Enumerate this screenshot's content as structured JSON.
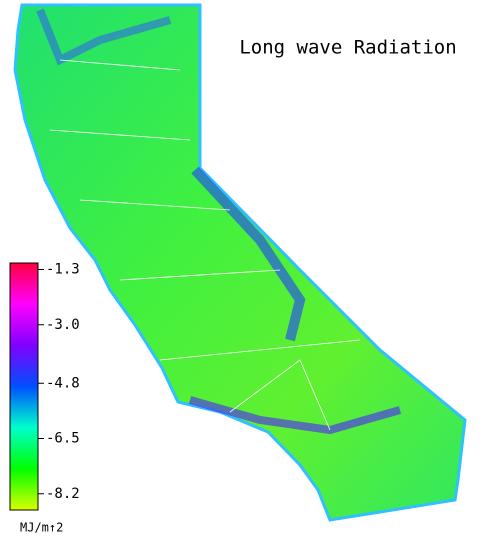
{
  "title": "Long wave Radiation",
  "colorbar": {
    "lim": [
      -8.7,
      -1.1
    ],
    "ticks": [
      -1.3,
      {
        "value": -3,
        "label": "-3.0"
      },
      -4.8,
      -6.5,
      -8.2
    ],
    "colors": [
      "#d8ff00",
      "#00ff00",
      "#00ffcc",
      "#0050ff",
      "#8000ff",
      "#ff00ff",
      "#ff0040"
    ],
    "unit": "MJ/m↑2"
  }
}
